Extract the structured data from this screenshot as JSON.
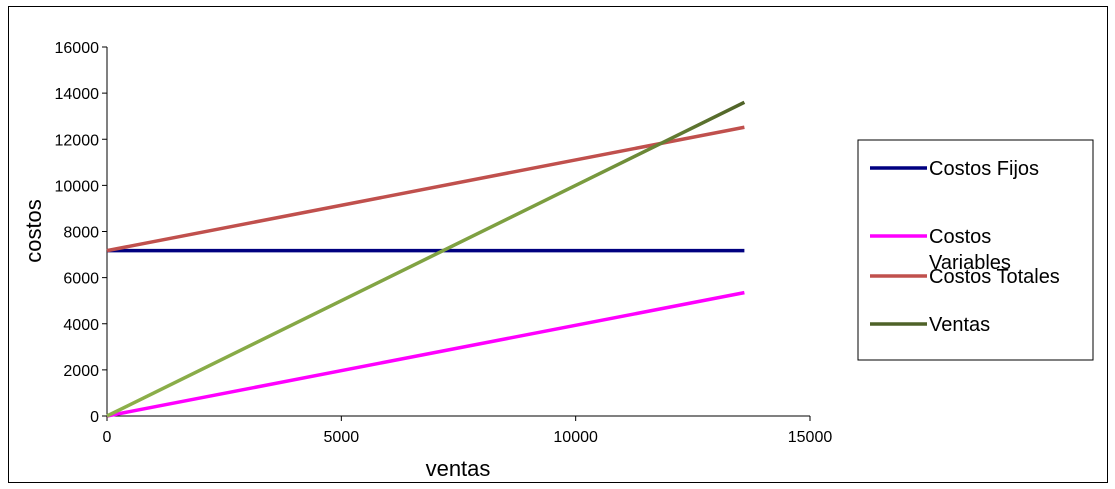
{
  "chart_data": {
    "type": "line",
    "title": "",
    "xlabel": "ventas",
    "ylabel": "costos",
    "xlim": [
      0,
      15000
    ],
    "ylim": [
      0,
      16000
    ],
    "x_ticks": [
      0,
      5000,
      10000,
      15000
    ],
    "y_ticks": [
      0,
      2000,
      4000,
      6000,
      8000,
      10000,
      12000,
      14000,
      16000
    ],
    "grid": false,
    "legend_position": "right",
    "series": [
      {
        "name": "Costos Fijos",
        "color": "#000080",
        "x": [
          0,
          13600
        ],
        "y": [
          7170,
          7170
        ]
      },
      {
        "name": "Costos Variables",
        "color": "#ff00ff",
        "x": [
          0,
          13600
        ],
        "y": [
          0,
          5350
        ]
      },
      {
        "name": "Costos Totales",
        "color": "#c0504d",
        "x": [
          0,
          13600
        ],
        "y": [
          7170,
          12520
        ]
      },
      {
        "name": "Ventas",
        "color_start": "#8db04a",
        "color_end": "#4f6228",
        "x": [
          0,
          13600
        ],
        "y": [
          0,
          13600
        ]
      }
    ]
  }
}
